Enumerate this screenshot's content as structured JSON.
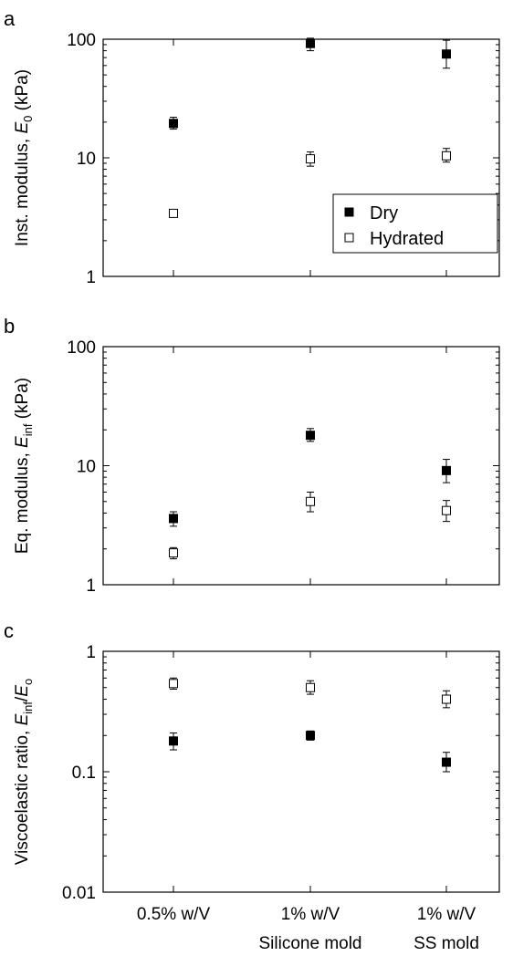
{
  "chart_data": [
    {
      "type": "scatter",
      "panel_label": "a",
      "ylabel": "Inst. modulus, E0 (kPa)",
      "ylabel_parts": {
        "main": "Inst. modulus, ",
        "var": "E",
        "sub": "0",
        "tail": " (kPa)"
      },
      "yscale": "log",
      "ylim": [
        1,
        100
      ],
      "yticks": [
        1,
        10,
        100
      ],
      "yticklabels": [
        "1",
        "10",
        "100"
      ],
      "categories": [
        "0.5% w/V",
        "1% w/V",
        "1% w/V"
      ],
      "legend": {
        "placement": "lower-right",
        "entries": [
          "Dry",
          "Hydrated"
        ]
      },
      "series": [
        {
          "name": "Dry",
          "marker": "filled-square",
          "values": [
            19.5,
            92,
            75
          ],
          "err_low": [
            17.5,
            80,
            57
          ],
          "err_high": [
            22,
            102,
            98
          ]
        },
        {
          "name": "Hydrated",
          "marker": "open-square",
          "values": [
            3.4,
            9.8,
            10.4
          ],
          "err_low": [
            3.3,
            8.5,
            9.2
          ],
          "err_high": [
            3.6,
            11.2,
            12
          ]
        }
      ]
    },
    {
      "type": "scatter",
      "panel_label": "b",
      "ylabel": "Eq. modulus, Einf (kPa)",
      "ylabel_parts": {
        "main": "Eq. modulus, ",
        "var": "E",
        "sub": "inf",
        "tail": " (kPa)"
      },
      "yscale": "log",
      "ylim": [
        1,
        100
      ],
      "yticks": [
        1,
        10,
        100
      ],
      "yticklabels": [
        "1",
        "10",
        "100"
      ],
      "categories": [
        "0.5% w/V",
        "1% w/V",
        "1% w/V"
      ],
      "series": [
        {
          "name": "Dry",
          "marker": "filled-square",
          "values": [
            3.6,
            18,
            9.1
          ],
          "err_low": [
            3.1,
            16,
            7.2
          ],
          "err_high": [
            4.1,
            20.5,
            11.3
          ]
        },
        {
          "name": "Hydrated",
          "marker": "open-square",
          "values": [
            1.85,
            5,
            4.2
          ],
          "err_low": [
            1.65,
            4.1,
            3.4
          ],
          "err_high": [
            2.05,
            6,
            5.1
          ]
        }
      ]
    },
    {
      "type": "scatter",
      "panel_label": "c",
      "ylabel": "Viscoelastic ratio, Einf/Eo",
      "ylabel_parts": {
        "main": "Viscoelastic ratio, ",
        "var": "E",
        "sub": "inf",
        "tail": "/",
        "var2": "E",
        "sub2": "o"
      },
      "yscale": "log",
      "ylim": [
        0.01,
        1
      ],
      "yticks": [
        0.01,
        0.1,
        1
      ],
      "yticklabels": [
        "0.01",
        "0.1",
        "1"
      ],
      "categories": [
        "0.5% w/V",
        "1% w/V",
        "1% w/V"
      ],
      "category_sublabels": [
        "",
        "Silicone mold",
        "SS mold"
      ],
      "series": [
        {
          "name": "Dry",
          "marker": "filled-square",
          "values": [
            0.18,
            0.2,
            0.12
          ],
          "err_low": [
            0.152,
            0.183,
            0.1
          ],
          "err_high": [
            0.21,
            0.218,
            0.145
          ]
        },
        {
          "name": "Hydrated",
          "marker": "open-square",
          "values": [
            0.54,
            0.5,
            0.4
          ],
          "err_low": [
            0.485,
            0.44,
            0.34
          ],
          "err_high": [
            0.6,
            0.57,
            0.47
          ]
        }
      ]
    }
  ]
}
